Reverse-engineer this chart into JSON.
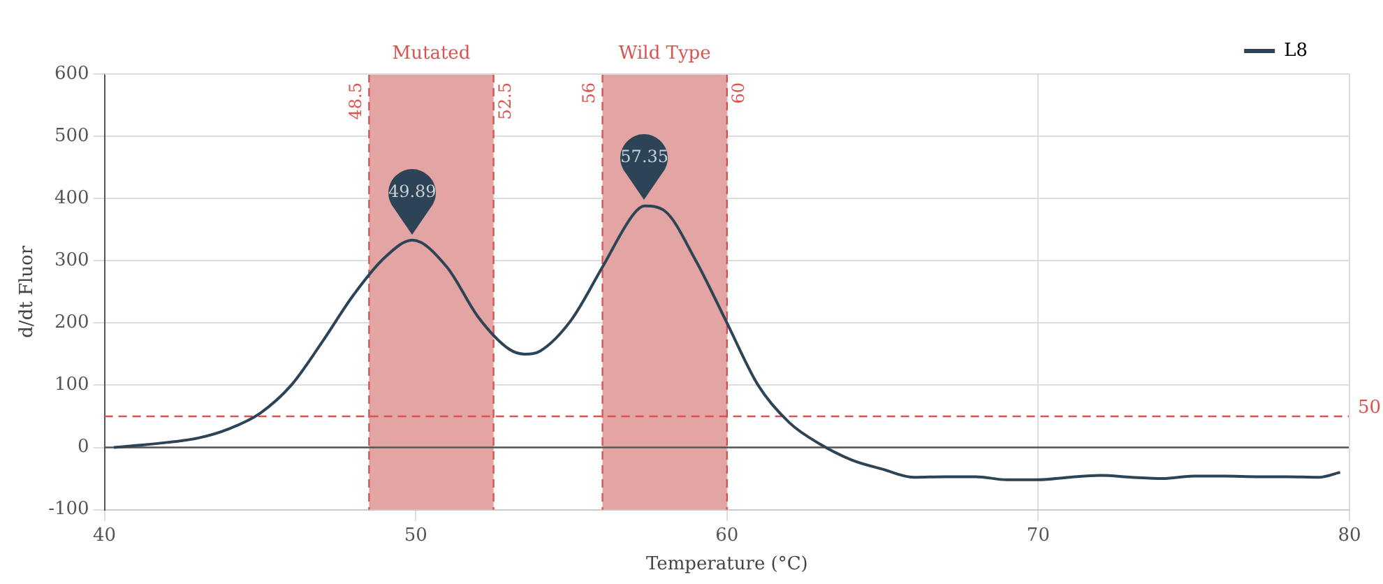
{
  "chart_data": {
    "type": "line",
    "xlabel": "Temperature (°C)",
    "ylabel": "d/dt Fluor",
    "xlim": [
      40,
      80
    ],
    "xticks": [
      40,
      50,
      60,
      70,
      80
    ],
    "ylim": [
      -100,
      600
    ],
    "yticks": [
      -100,
      0,
      100,
      200,
      300,
      400,
      500,
      600
    ],
    "grid": true,
    "legend": "top right",
    "marker": "none",
    "line_style": "solid",
    "series": [
      {
        "name": "L8",
        "color": "#2d4356",
        "x": [
          40.3,
          41,
          42,
          43,
          44,
          45,
          46,
          47,
          48,
          49,
          49.89,
          51,
          52,
          53,
          53.5,
          54,
          55,
          56,
          57,
          57.35,
          58,
          59,
          60,
          61,
          62,
          63,
          64,
          65,
          66,
          67,
          68,
          69,
          70,
          71,
          72,
          73,
          74,
          75,
          76,
          77,
          78,
          79,
          79.7
        ],
        "values": [
          0,
          3,
          8,
          15,
          30,
          55,
          100,
          170,
          245,
          305,
          333,
          290,
          210,
          158,
          150,
          155,
          205,
          290,
          375,
          388,
          380,
          300,
          200,
          100,
          40,
          5,
          -20,
          -35,
          -48,
          -47,
          -47,
          -52,
          -52,
          -48,
          -45,
          -48,
          -50,
          -46,
          -46,
          -47,
          -47,
          -48,
          -40
        ]
      }
    ],
    "bands": [
      {
        "axis": "x",
        "from": 48.5,
        "to": 52.5,
        "label": "Mutated",
        "color": "#e3a4a4"
      },
      {
        "axis": "x",
        "from": 56,
        "to": 60,
        "label": "Wild Type",
        "color": "#e3a4a4"
      }
    ],
    "ref_lines": [
      {
        "axis": "y",
        "value": 50,
        "label": "50",
        "color": "#d9534f",
        "line_style": "dashed"
      },
      {
        "axis": "x",
        "value": 48.5,
        "label": "48.5",
        "color": "#d9534f",
        "line_style": "dashed"
      },
      {
        "axis": "x",
        "value": 52.5,
        "label": "52.5",
        "color": "#d9534f",
        "line_style": "dashed"
      },
      {
        "axis": "x",
        "value": 56,
        "label": "56",
        "color": "#d9534f",
        "line_style": "dashed"
      },
      {
        "axis": "x",
        "value": 60,
        "label": "60",
        "color": "#d9534f",
        "line_style": "dashed"
      }
    ],
    "annotations": [
      {
        "text": "49.89",
        "x": 49.89,
        "y": 333
      },
      {
        "text": "57.35",
        "x": 57.35,
        "y": 388
      }
    ]
  }
}
